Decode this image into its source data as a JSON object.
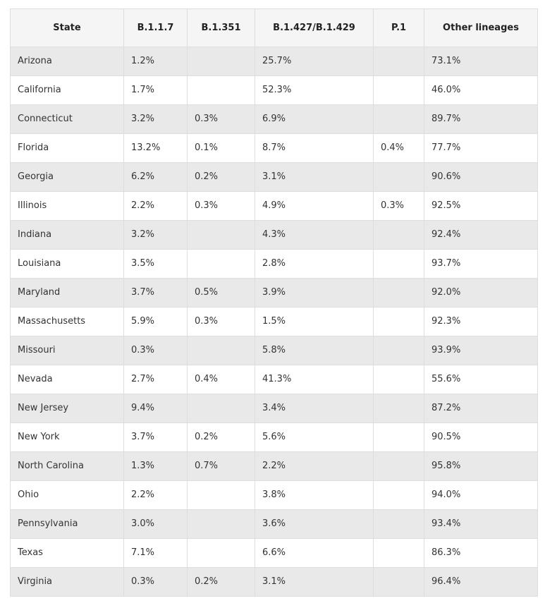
{
  "table": {
    "headers": [
      "State",
      "B.1.1.7",
      "B.1.351",
      "B.1.427/B.1.429",
      "P.1",
      "Other lineages"
    ],
    "rows": [
      [
        "Arizona",
        "1.2%",
        "",
        "25.7%",
        "",
        "73.1%"
      ],
      [
        "California",
        "1.7%",
        "",
        "52.3%",
        "",
        "46.0%"
      ],
      [
        "Connecticut",
        "3.2%",
        "0.3%",
        "6.9%",
        "",
        "89.7%"
      ],
      [
        "Florida",
        "13.2%",
        "0.1%",
        "8.7%",
        "0.4%",
        "77.7%"
      ],
      [
        "Georgia",
        "6.2%",
        "0.2%",
        "3.1%",
        "",
        "90.6%"
      ],
      [
        "Illinois",
        "2.2%",
        "0.3%",
        "4.9%",
        "0.3%",
        "92.5%"
      ],
      [
        "Indiana",
        "3.2%",
        "",
        "4.3%",
        "",
        "92.4%"
      ],
      [
        "Louisiana",
        "3.5%",
        "",
        "2.8%",
        "",
        "93.7%"
      ],
      [
        "Maryland",
        "3.7%",
        "0.5%",
        "3.9%",
        "",
        "92.0%"
      ],
      [
        "Massachusetts",
        "5.9%",
        "0.3%",
        "1.5%",
        "",
        "92.3%"
      ],
      [
        "Missouri",
        "0.3%",
        "",
        "5.8%",
        "",
        "93.9%"
      ],
      [
        "Nevada",
        "2.7%",
        "0.4%",
        "41.3%",
        "",
        "55.6%"
      ],
      [
        "New Jersey",
        "9.4%",
        "",
        "3.4%",
        "",
        "87.2%"
      ],
      [
        "New York",
        "3.7%",
        "0.2%",
        "5.6%",
        "",
        "90.5%"
      ],
      [
        "North Carolina",
        "1.3%",
        "0.7%",
        "2.2%",
        "",
        "95.8%"
      ],
      [
        "Ohio",
        "2.2%",
        "",
        "3.8%",
        "",
        "94.0%"
      ],
      [
        "Pennsylvania",
        "3.0%",
        "",
        "3.6%",
        "",
        "93.4%"
      ],
      [
        "Texas",
        "7.1%",
        "",
        "6.6%",
        "",
        "86.3%"
      ],
      [
        "Virginia",
        "0.3%",
        "0.2%",
        "3.1%",
        "",
        "96.4%"
      ]
    ]
  },
  "colors": {
    "header_bg": "#f5f5f5",
    "row_shaded_bg": "#e9e9e9",
    "row_plain_bg": "#ffffff",
    "border": "#dddddd",
    "text": "#333333"
  }
}
